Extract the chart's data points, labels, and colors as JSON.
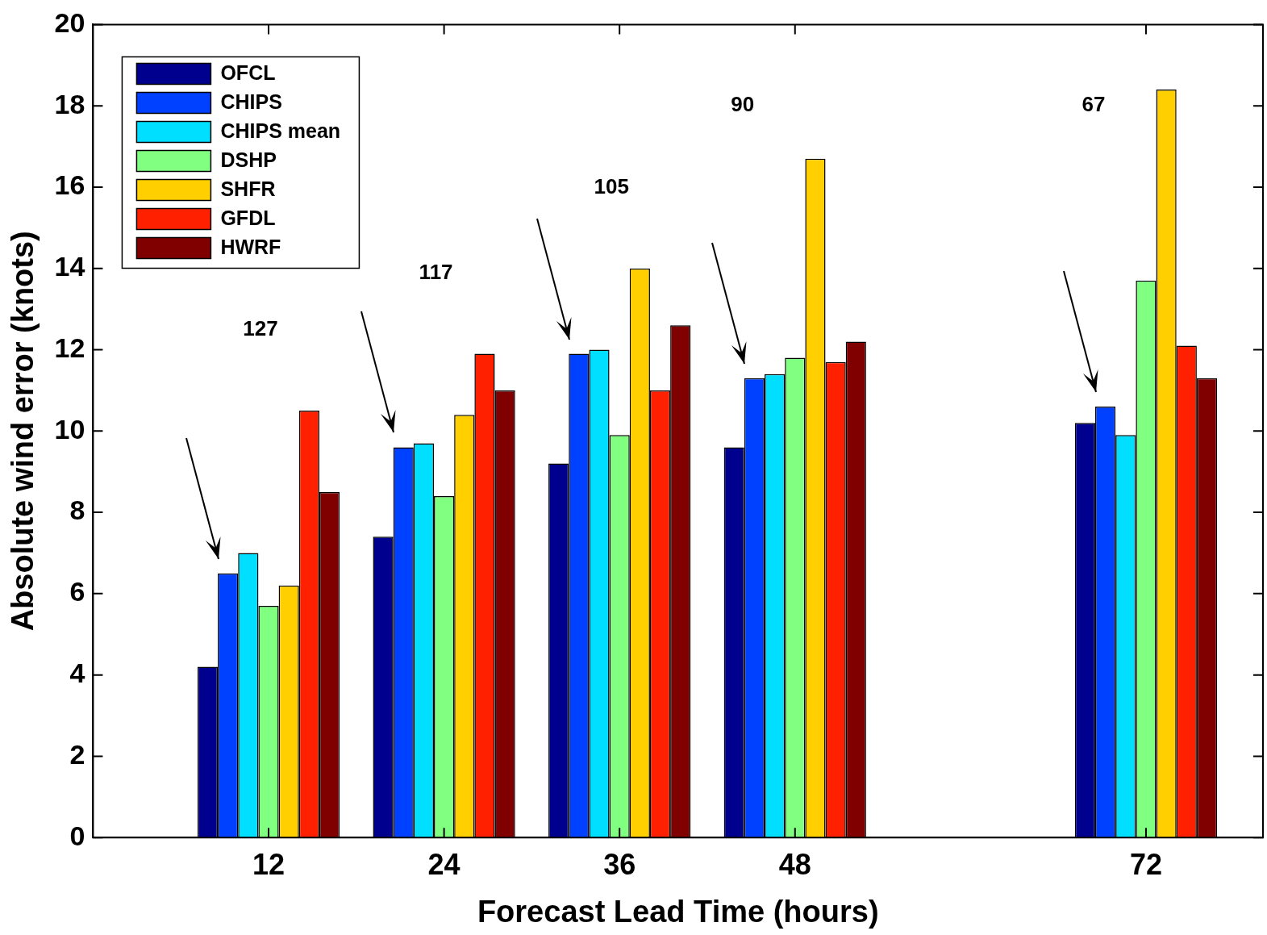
{
  "chart_data": {
    "type": "bar",
    "xlabel": "Forecast Lead Time (hours)",
    "ylabel": "Absolute wind error (knots)",
    "x": [
      12,
      24,
      36,
      48,
      72
    ],
    "xlim": [
      0,
      80
    ],
    "xticks": [
      12,
      24,
      36,
      48,
      72
    ],
    "ylim": [
      0,
      20
    ],
    "yticks": [
      0,
      2,
      4,
      6,
      8,
      10,
      12,
      14,
      16,
      18,
      20
    ],
    "grid": false,
    "legend": "top left",
    "series": [
      {
        "name": "OFCL",
        "color": "#00008f",
        "values": [
          4.2,
          7.4,
          9.2,
          9.6,
          10.2
        ]
      },
      {
        "name": "CHIPS",
        "color": "#0040ff",
        "values": [
          6.5,
          9.6,
          11.9,
          11.3,
          10.6
        ]
      },
      {
        "name": "CHIPS mean",
        "color": "#00dfff",
        "values": [
          7.0,
          9.7,
          12.0,
          11.4,
          9.9
        ]
      },
      {
        "name": "DSHP",
        "color": "#80ff80",
        "values": [
          5.7,
          8.4,
          9.9,
          11.8,
          13.7
        ]
      },
      {
        "name": "SHFR",
        "color": "#ffcf00",
        "values": [
          6.2,
          10.4,
          14.0,
          16.7,
          18.4
        ]
      },
      {
        "name": "GFDL",
        "color": "#ff2000",
        "values": [
          10.5,
          11.9,
          11.0,
          11.7,
          12.1
        ]
      },
      {
        "name": "HWRF",
        "color": "#800000",
        "values": [
          8.5,
          11.0,
          12.6,
          12.2,
          11.3
        ]
      }
    ],
    "annotations": [
      "127",
      "117",
      "105",
      "90",
      "67"
    ]
  }
}
